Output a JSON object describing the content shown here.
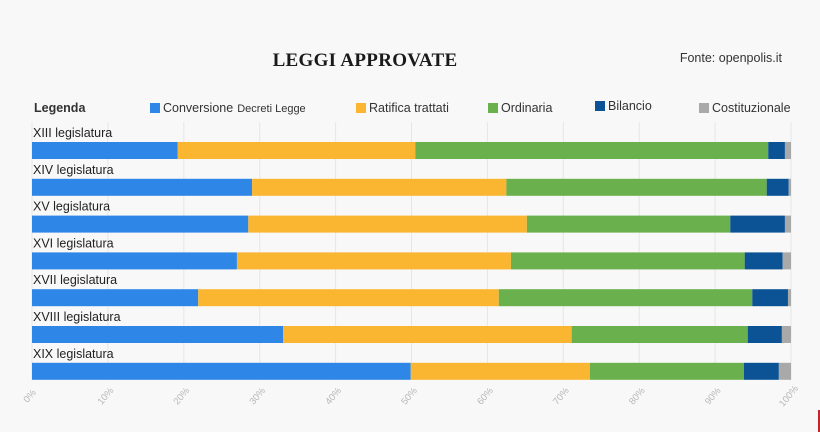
{
  "header": {
    "title": "LEGGI APPROVATE",
    "source": "Fonte: openpolis.it"
  },
  "legend": {
    "title": "Legenda",
    "items": [
      {
        "label": "Conversione",
        "sublabel": "Decreti Legge",
        "color": "#2e86e6"
      },
      {
        "label": "Ratifica trattati",
        "sublabel": "",
        "color": "#fbb631"
      },
      {
        "label": "Ordinaria",
        "sublabel": "",
        "color": "#6ab04c"
      },
      {
        "label": "Bilancio",
        "sublabel": "",
        "color": "#0b5394"
      },
      {
        "label": "Costituzionale",
        "sublabel": "",
        "color": "#a9a9a9"
      }
    ]
  },
  "chart_data": {
    "type": "bar",
    "orientation": "horizontal",
    "stacked": true,
    "title": "LEGGI APPROVATE",
    "xlabel": "",
    "ylabel": "",
    "xlim": [
      0,
      100
    ],
    "x_ticks": [
      "0%",
      "10%",
      "20%",
      "30%",
      "40%",
      "50%",
      "60%",
      "70%",
      "80%",
      "90%",
      "100%"
    ],
    "grid": true,
    "legend_position": "top",
    "categories": [
      "XIII legislatura",
      "XIV legislatura",
      "XV legislatura",
      "XVI legislatura",
      "XVII legislatura",
      "XVIII legislatura",
      "XIX legislatura"
    ],
    "series": [
      {
        "name": "Conversione Decreti Legge",
        "color": "#2e86e6",
        "values": [
          19.2,
          29.0,
          28.5,
          27.0,
          21.9,
          33.1,
          49.9
        ]
      },
      {
        "name": "Ratifica trattati",
        "color": "#fbb631",
        "values": [
          31.3,
          33.5,
          36.7,
          36.1,
          39.6,
          38.0,
          23.6
        ]
      },
      {
        "name": "Ordinaria",
        "color": "#6ab04c",
        "values": [
          46.5,
          34.3,
          26.8,
          30.8,
          33.4,
          23.2,
          20.3
        ]
      },
      {
        "name": "Bilancio",
        "color": "#0b5394",
        "values": [
          2.2,
          2.9,
          7.2,
          5.0,
          4.7,
          4.5,
          4.6
        ]
      },
      {
        "name": "Costituzionale",
        "color": "#a9a9a9",
        "values": [
          0.8,
          0.3,
          0.8,
          1.1,
          0.4,
          1.2,
          1.6
        ]
      }
    ]
  }
}
